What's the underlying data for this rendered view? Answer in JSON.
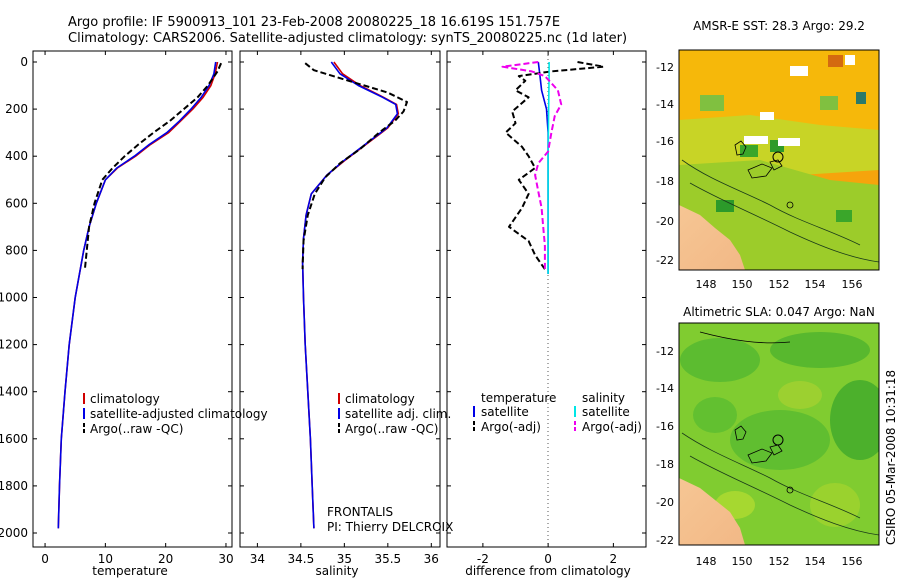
{
  "header": {
    "line1": "Argo profile: IF 5900913_101 23-Feb-2008 20080225_18 16.619S 151.757E",
    "line2": "Climatology: CARS2006. Satellite-adjusted climatology: synTS_20080225.nc (1d later)"
  },
  "colors": {
    "climatology": "#d00000",
    "satellite": "#0000e6",
    "argo": "#000000",
    "sal_satellite": "#00e6e6",
    "sal_argo": "#ee00ee"
  },
  "chart_data": [
    {
      "type": "line",
      "xlabel": "temperature",
      "xlim": [
        -2,
        31
      ],
      "ylim": [
        2000,
        0
      ],
      "xticks": [
        0,
        10,
        20,
        30
      ],
      "yticks": [
        0,
        200,
        400,
        600,
        800,
        1000,
        1200,
        1400,
        1600,
        1800,
        2000
      ],
      "legend": [
        "climatology",
        "satellite-adjusted climatology",
        "Argo(..raw -QC)"
      ],
      "series": [
        {
          "name": "climatology",
          "style": "solid",
          "color": "climatology",
          "x": [
            28.6,
            28.2,
            27.5,
            26.2,
            24.5,
            22.5,
            20.5,
            17.5,
            15.0,
            12.0,
            10.0,
            8.5,
            7.3,
            6.4,
            5.0,
            4.0,
            3.3,
            2.7,
            2.4,
            2.2
          ],
          "y": [
            0,
            50,
            100,
            150,
            200,
            250,
            300,
            350,
            400,
            450,
            500,
            600,
            700,
            800,
            1000,
            1200,
            1400,
            1600,
            1800,
            1980
          ]
        },
        {
          "name": "satellite-adjusted climatology",
          "style": "solid",
          "color": "satellite",
          "x": [
            28.3,
            28.0,
            27.2,
            25.9,
            24.2,
            22.3,
            20.2,
            17.3,
            14.8,
            11.9,
            10.0,
            8.5,
            7.3,
            6.4,
            5.0,
            4.0,
            3.3,
            2.7,
            2.4,
            2.2
          ],
          "y": [
            0,
            50,
            100,
            150,
            200,
            250,
            300,
            350,
            400,
            450,
            500,
            600,
            700,
            800,
            1000,
            1200,
            1400,
            1600,
            1800,
            1980
          ]
        },
        {
          "name": "Argo(..raw -QC)",
          "style": "dashed",
          "color": "argo",
          "x": [
            29.2,
            28.6,
            27.0,
            25.3,
            23.0,
            20.7,
            18.0,
            15.5,
            13.2,
            11.2,
            9.5,
            8.2,
            7.3,
            6.6
          ],
          "y": [
            5,
            40,
            100,
            150,
            200,
            250,
            300,
            350,
            400,
            450,
            500,
            600,
            700,
            880
          ]
        }
      ]
    },
    {
      "type": "line",
      "xlabel": "salinity",
      "xlim": [
        33.8,
        36.1
      ],
      "ylim": [
        2000,
        0
      ],
      "xticks": [
        34,
        34.5,
        35,
        35.5,
        36
      ],
      "legend": [
        "climatology",
        "satellite adj. clim.",
        "Argo(..raw -QC)"
      ],
      "annotation": [
        "FRONTALIS",
        "PI: Thierry DELCROIX"
      ],
      "series": [
        {
          "name": "climatology",
          "style": "solid",
          "color": "climatology",
          "x": [
            34.88,
            34.98,
            35.18,
            35.45,
            35.6,
            35.62,
            35.5,
            35.25,
            35.0,
            34.8,
            34.62,
            34.56,
            34.53,
            34.52,
            34.53,
            34.55,
            34.58,
            34.61,
            34.63,
            34.65
          ],
          "y": [
            0,
            50,
            100,
            150,
            180,
            220,
            280,
            350,
            420,
            480,
            560,
            650,
            750,
            850,
            1000,
            1200,
            1400,
            1600,
            1800,
            1980
          ]
        },
        {
          "name": "satellite adj. clim.",
          "style": "solid",
          "color": "satellite",
          "x": [
            34.85,
            34.95,
            35.16,
            35.44,
            35.59,
            35.61,
            35.49,
            35.24,
            34.99,
            34.8,
            34.62,
            34.56,
            34.53,
            34.52,
            34.53,
            34.55,
            34.58,
            34.61,
            34.63,
            34.65
          ],
          "y": [
            0,
            50,
            100,
            150,
            180,
            220,
            280,
            350,
            420,
            480,
            560,
            650,
            750,
            850,
            1000,
            1200,
            1400,
            1600,
            1800,
            1980
          ]
        },
        {
          "name": "Argo(..raw -QC)",
          "style": "dashed",
          "color": "argo",
          "x": [
            34.55,
            34.65,
            35.05,
            35.5,
            35.72,
            35.68,
            35.58,
            35.4,
            35.18,
            34.95,
            34.78,
            34.66,
            34.58,
            34.53,
            34.52
          ],
          "y": [
            5,
            35,
            80,
            130,
            170,
            210,
            250,
            300,
            370,
            430,
            490,
            560,
            650,
            760,
            880
          ]
        }
      ]
    },
    {
      "type": "line",
      "xlabel": "difference from climatology",
      "xlim": [
        -3.1,
        3.0
      ],
      "ylim": [
        2000,
        0
      ],
      "xticks": [
        -2,
        0,
        2
      ],
      "legend_headers": [
        "temperature",
        "salinity"
      ],
      "legend": [
        "satellite",
        "Argo(-adj)",
        "satellite",
        "Argo(-adj)"
      ],
      "series": [
        {
          "name": "satellite",
          "group": "temperature",
          "style": "solid",
          "color": "satellite",
          "x": [
            -0.3,
            -0.25,
            -0.2,
            -0.05,
            0.0,
            0.0,
            0.0,
            0.0
          ],
          "y": [
            0,
            60,
            120,
            200,
            300,
            500,
            700,
            900
          ]
        },
        {
          "name": "Argo(-adj)",
          "group": "temperature",
          "style": "dashed",
          "color": "argo",
          "x": [
            0.9,
            1.7,
            0.1,
            -0.9,
            -0.7,
            -1.0,
            -0.6,
            -1.1,
            -1.0,
            -1.3,
            -0.8,
            -0.6,
            -0.4,
            -0.9,
            -0.6,
            -0.8,
            -1.2,
            -0.6,
            -0.4,
            -0.1
          ],
          "y": [
            0,
            20,
            40,
            60,
            80,
            120,
            150,
            210,
            260,
            300,
            360,
            400,
            450,
            500,
            560,
            620,
            700,
            760,
            820,
            880
          ]
        },
        {
          "name": "satellite",
          "group": "salinity",
          "style": "solid",
          "color": "sal_satellite",
          "x": [
            0.03,
            0.03,
            0.02,
            0.01,
            0.0,
            0.0,
            0.0
          ],
          "y": [
            0,
            60,
            150,
            250,
            400,
            650,
            900
          ]
        },
        {
          "name": "Argo(-adj)",
          "group": "salinity",
          "style": "dashed",
          "color": "sal_argo",
          "x": [
            -0.3,
            -1.4,
            -0.5,
            -0.1,
            0.3,
            0.4,
            0.2,
            0.1,
            0.0,
            -0.3,
            -0.4,
            -0.3,
            -0.2,
            -0.15,
            -0.1,
            -0.1
          ],
          "y": [
            0,
            20,
            40,
            60,
            120,
            180,
            230,
            300,
            380,
            430,
            480,
            550,
            620,
            700,
            780,
            880
          ]
        }
      ]
    }
  ],
  "map_sst": {
    "title": "AMSR-E SST: 28.3 Argo: 29.2",
    "xticks": [
      "148",
      "150",
      "152",
      "154",
      "156"
    ],
    "yticks": [
      "-12",
      "-14",
      "-16",
      "-18",
      "-20",
      "-22"
    ]
  },
  "map_sla": {
    "title": "Altimetric SLA: 0.047 Argo: NaN",
    "xticks": [
      "148",
      "150",
      "152",
      "154",
      "156"
    ],
    "yticks": [
      "-12",
      "-14",
      "-16",
      "-18",
      "-20",
      "-22"
    ]
  },
  "footer": {
    "credit": "CSIRO 05-Mar-2008 10:31:18"
  }
}
